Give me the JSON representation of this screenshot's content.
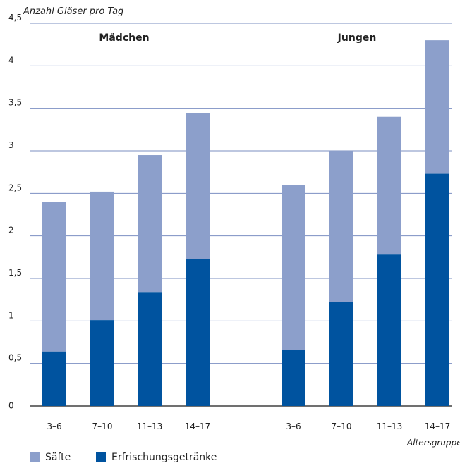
{
  "colors": {
    "saefte": "#8c9fcb",
    "erfrischung": "#00539f",
    "grid": "#7b8fc2",
    "axis": "#1a1a1a",
    "text": "#222222"
  },
  "chart_data": {
    "type": "bar",
    "stacked": true,
    "ylabel": "Anzahl Gläser pro Tag",
    "xlabel": "Altersgruppe",
    "ylim": [
      0,
      4.5
    ],
    "yticks": [
      "0",
      "0,5",
      "1",
      "1,5",
      "2",
      "2,5",
      "3",
      "3,5",
      "4",
      "4,5"
    ],
    "grid": true,
    "legend_position": "bottom-left",
    "groups": [
      {
        "title": "Mädchen",
        "categories": [
          "3–6",
          "7–10",
          "11–13",
          "14–17"
        ],
        "series": [
          {
            "name": "Erfrischungsgetränke",
            "values": [
              0.64,
              1.01,
              1.34,
              1.73
            ]
          },
          {
            "name": "Säfte",
            "values": [
              1.76,
              1.51,
              1.61,
              1.71
            ]
          }
        ]
      },
      {
        "title": "Jungen",
        "categories": [
          "3–6",
          "7–10",
          "11–13",
          "14–17"
        ],
        "series": [
          {
            "name": "Erfrischungsgetränke",
            "values": [
              0.66,
              1.22,
              1.78,
              2.73
            ]
          },
          {
            "name": "Säfte",
            "values": [
              1.94,
              1.78,
              1.62,
              1.57
            ]
          }
        ]
      }
    ],
    "legend": [
      "Säfte",
      "Erfrischungsgetränke"
    ]
  }
}
